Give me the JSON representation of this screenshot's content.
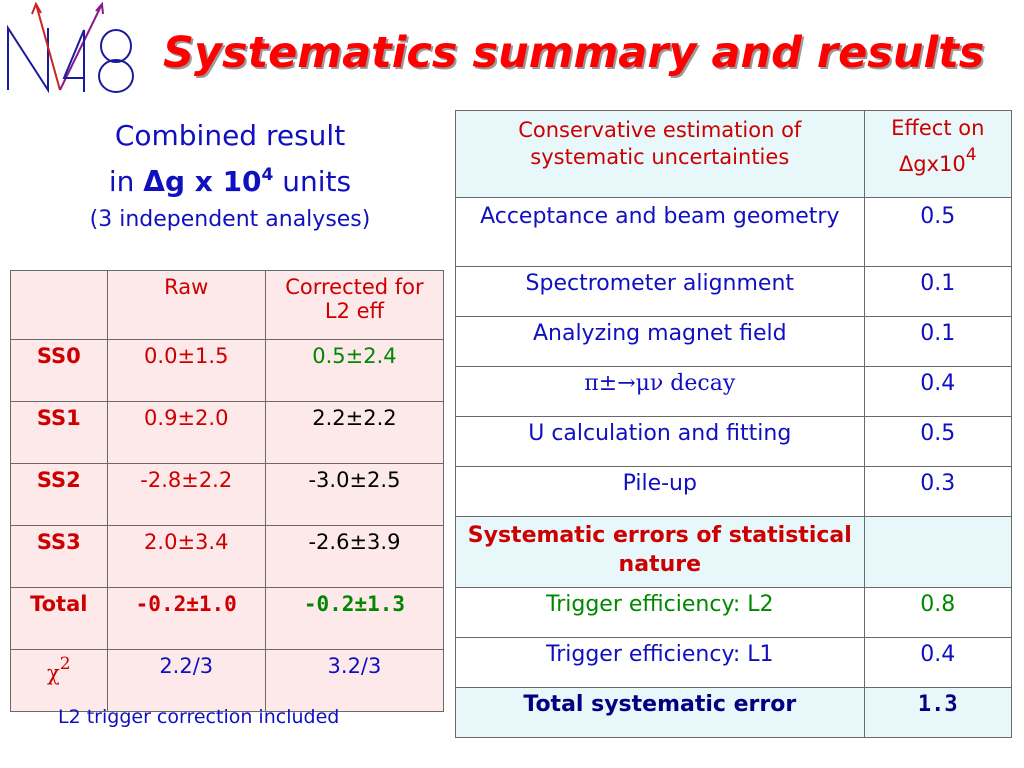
{
  "title": "Systematics summary and results",
  "combined": {
    "line1": "Combined result",
    "line2_pre": "in ",
    "line2_quantity": "Δg x 10",
    "line2_exp": "4",
    "line2_post": " units",
    "line3": "(3 independent analyses)"
  },
  "left_table": {
    "headers": [
      "",
      "Raw",
      "Corrected for L2 eff"
    ],
    "rows": [
      {
        "label": "SS0",
        "raw": "0.0±1.5",
        "corrected": "0.5±2.4"
      },
      {
        "label": "SS1",
        "raw": "0.9±2.0",
        "corrected": "2.2±2.2"
      },
      {
        "label": "SS2",
        "raw": "-2.8±2.2",
        "corrected": "-3.0±2.5"
      },
      {
        "label": "SS3",
        "raw": "2.0±3.4",
        "corrected": "-2.6±3.9"
      },
      {
        "label": "Total",
        "raw": "-0.2±1.0",
        "corrected": "-0.2±1.3"
      },
      {
        "label_symbol": "χ",
        "label_exp": "2",
        "raw": "2.2/3",
        "corrected": "3.2/3"
      }
    ]
  },
  "note": "L2 trigger correction included",
  "right_table": {
    "header_left": "Conservative estimation of systematic uncertainties",
    "header_right": "Effect on Δgx10",
    "header_right_exp": "4",
    "rows": [
      {
        "label": "Acceptance and beam geometry",
        "value": "0.5"
      },
      {
        "label": "Spectrometer alignment",
        "value": "0.1"
      },
      {
        "label": "Analyzing magnet field",
        "value": "0.1"
      },
      {
        "label": "π±→μν decay",
        "value": "0.4"
      },
      {
        "label": "U calculation and fitting",
        "value": "0.5"
      },
      {
        "label": "Pile-up",
        "value": "0.3"
      }
    ],
    "subheader": "Systematic errors of statistical nature",
    "stat_rows": [
      {
        "label": "Trigger efficiency: L2",
        "value": "0.8"
      },
      {
        "label": "Trigger efficiency: L1",
        "value": "0.4"
      }
    ],
    "total": {
      "label": "Total systematic error",
      "value": "1.3"
    }
  }
}
